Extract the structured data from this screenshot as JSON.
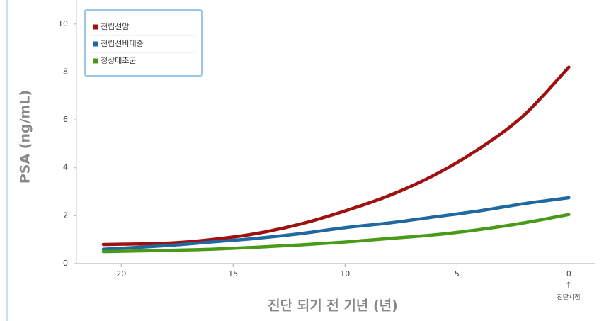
{
  "chart_data": {
    "type": "line",
    "x_label": "진단 되기 전 기년 (년)",
    "y_label": "PSA (ng/mL)",
    "annotation": "진단시점",
    "annotation_arrow": "↑",
    "x": [
      20.8,
      18,
      16,
      14,
      12,
      10,
      8,
      6,
      4,
      2,
      0
    ],
    "series": [
      {
        "name": "전립선암",
        "color": "#a01010",
        "values": [
          0.8,
          0.85,
          1.0,
          1.25,
          1.65,
          2.2,
          2.85,
          3.7,
          4.8,
          6.2,
          8.2
        ]
      },
      {
        "name": "전립선비대증",
        "color": "#1f68a0",
        "values": [
          0.6,
          0.75,
          0.9,
          1.05,
          1.25,
          1.5,
          1.7,
          1.95,
          2.2,
          2.5,
          2.75
        ]
      },
      {
        "name": "정상대조군",
        "color": "#4a9a1a",
        "values": [
          0.5,
          0.55,
          0.6,
          0.68,
          0.78,
          0.9,
          1.05,
          1.2,
          1.42,
          1.7,
          2.05
        ]
      }
    ],
    "xlim": [
      22,
      -1
    ],
    "xticks": [
      20,
      15,
      10,
      5,
      0
    ],
    "ylim": [
      0,
      11
    ],
    "yticks": [
      0,
      2,
      4,
      6,
      8,
      10
    ],
    "legend": "top-left"
  }
}
